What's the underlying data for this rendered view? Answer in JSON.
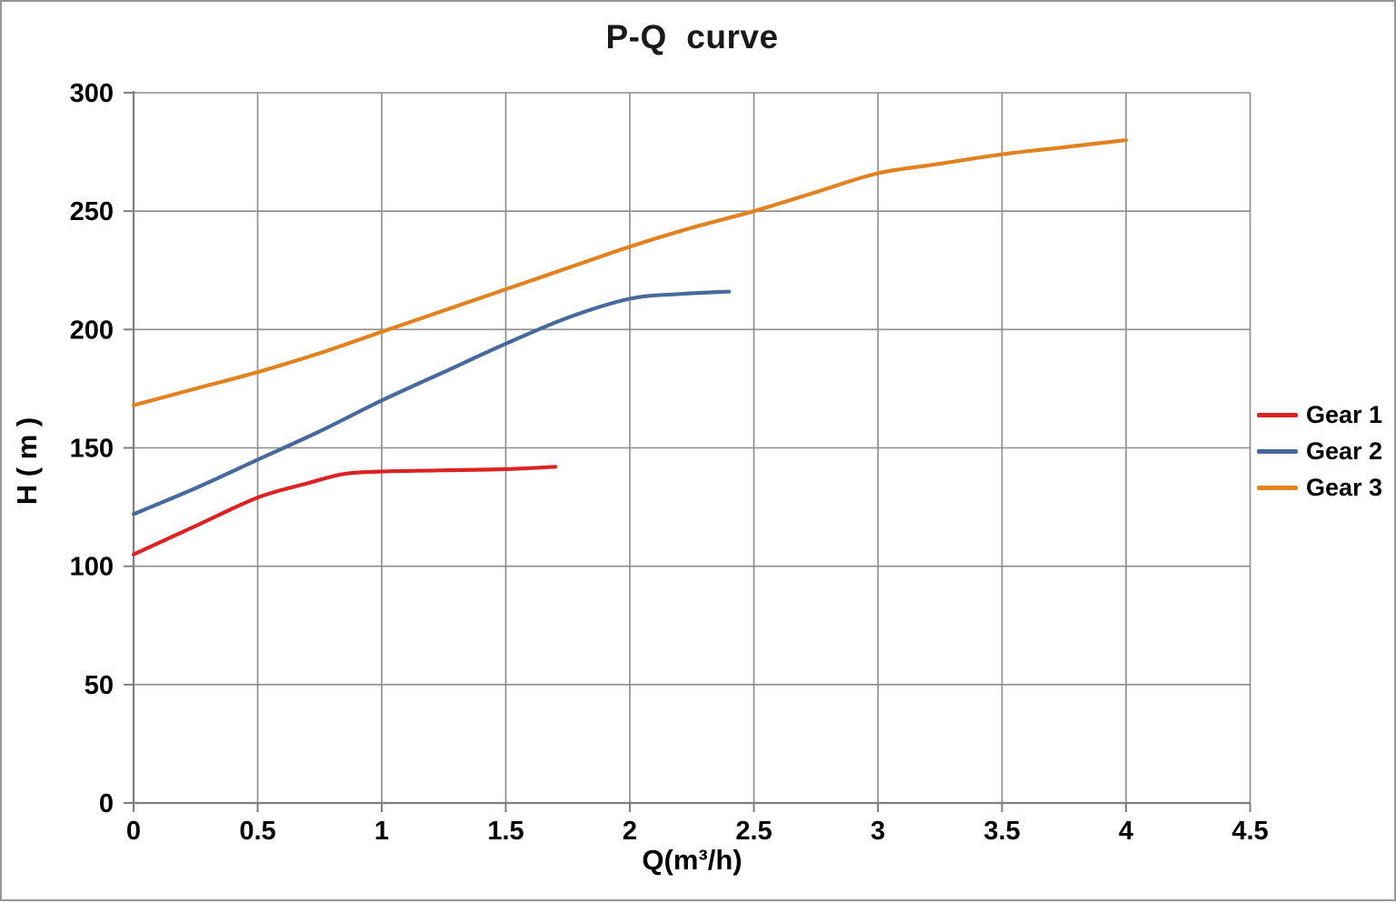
{
  "chart_data": {
    "type": "line",
    "title": "P-Q  curve",
    "xlabel": "Q(m³/h)",
    "ylabel": "H ( m )",
    "xlim": [
      0,
      4.5
    ],
    "ylim": [
      0,
      300
    ],
    "x_ticks": [
      "0",
      "0.5",
      "1",
      "1.5",
      "2",
      "2.5",
      "3",
      "3.5",
      "4",
      "4.5"
    ],
    "y_ticks": [
      "0",
      "50",
      "100",
      "150",
      "200",
      "250",
      "300"
    ],
    "grid": true,
    "legend_position": "right",
    "colors": {
      "grid": "#8c8c8c",
      "axis": "#7f7f7f",
      "text": "#000000",
      "background": "#ffffff",
      "frame_border": "#969696"
    },
    "series": [
      {
        "name": "Gear 1",
        "color": "#dc2323",
        "points": [
          [
            0,
            105
          ],
          [
            0.25,
            117
          ],
          [
            0.5,
            129
          ],
          [
            0.7,
            135
          ],
          [
            0.85,
            139
          ],
          [
            1.0,
            140
          ],
          [
            1.25,
            140.5
          ],
          [
            1.5,
            141
          ],
          [
            1.7,
            142
          ]
        ]
      },
      {
        "name": "Gear 2",
        "color": "#47699b",
        "points": [
          [
            0,
            122
          ],
          [
            0.25,
            133
          ],
          [
            0.5,
            145
          ],
          [
            0.75,
            157
          ],
          [
            1.0,
            170
          ],
          [
            1.25,
            182
          ],
          [
            1.5,
            194
          ],
          [
            1.75,
            205
          ],
          [
            2.0,
            213
          ],
          [
            2.2,
            215
          ],
          [
            2.4,
            216
          ]
        ]
      },
      {
        "name": "Gear 3",
        "color": "#e2811f",
        "points": [
          [
            0,
            168
          ],
          [
            0.25,
            175
          ],
          [
            0.5,
            182
          ],
          [
            0.75,
            190
          ],
          [
            1.0,
            199
          ],
          [
            1.25,
            208
          ],
          [
            1.5,
            217
          ],
          [
            1.75,
            226
          ],
          [
            2.0,
            235
          ],
          [
            2.25,
            243
          ],
          [
            2.5,
            250
          ],
          [
            2.75,
            258
          ],
          [
            3.0,
            266
          ],
          [
            3.25,
            270
          ],
          [
            3.5,
            274
          ],
          [
            3.75,
            277
          ],
          [
            4.0,
            280
          ]
        ]
      }
    ]
  }
}
